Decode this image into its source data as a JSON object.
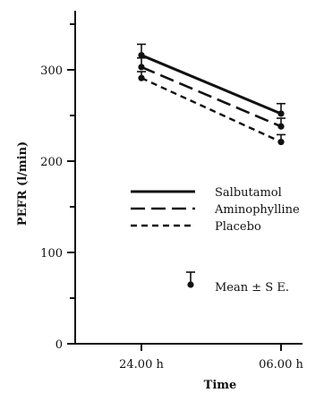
{
  "chart_data": {
    "type": "line",
    "title": "",
    "xlabel": "Time",
    "ylabel": "PEFR (l/min)",
    "ylim": [
      0,
      370
    ],
    "yticks": [
      0,
      100,
      200,
      300
    ],
    "xticks": [
      "24.00 h",
      "06.00 h"
    ],
    "grid": false,
    "legend_position": "center-right",
    "series": [
      {
        "name": "Salbutamol",
        "dash": "solid",
        "points": [
          {
            "x": "24.00 h",
            "y": 316,
            "se": 12
          },
          {
            "x": "06.00 h",
            "y": 252,
            "se": 11
          }
        ]
      },
      {
        "name": "Aminophylline",
        "dash": "long-dash",
        "points": [
          {
            "x": "24.00 h",
            "y": 303,
            "se": 10
          },
          {
            "x": "06.00 h",
            "y": 238,
            "se": 9
          }
        ]
      },
      {
        "name": "Placebo",
        "dash": "short-dash",
        "points": [
          {
            "x": "24.00 h",
            "y": 291,
            "se": 7
          },
          {
            "x": "06.00 h",
            "y": 221,
            "se": 8
          }
        ]
      }
    ],
    "error_legend_label": "Mean ± S E."
  }
}
